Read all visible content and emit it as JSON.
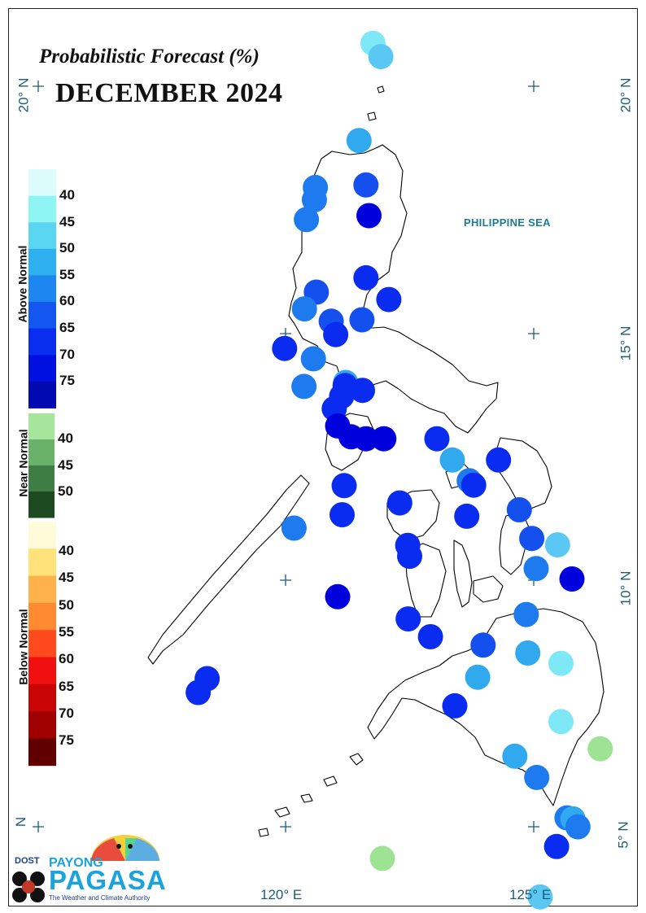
{
  "title": "Probabilistic Forecast (%)",
  "month": "DECEMBER 2024",
  "sea_label": "PHILIPPINE SEA",
  "lat_labels": {
    "top_left": "20° N",
    "top_right": "20° N",
    "mid_right": "15° N",
    "low_right": "10° N",
    "bottom_left": "N",
    "bottom_right": "5° N"
  },
  "lon_labels": {
    "west": "120° E",
    "east": "125° E"
  },
  "legend": {
    "above": {
      "title": "Above Normal",
      "labels": [
        "40",
        "45",
        "50",
        "55",
        "60",
        "65",
        "70",
        "75"
      ],
      "colors": [
        "#dcfcfc",
        "#8ef4f4",
        "#5ad6f0",
        "#2eb0f0",
        "#1e86f0",
        "#1456f0",
        "#0a2ef0",
        "#0010e0",
        "#000ab0"
      ]
    },
    "near": {
      "title": "Near Normal",
      "labels": [
        "40",
        "45",
        "50"
      ],
      "colors": [
        "#a6e69c",
        "#6ab26a",
        "#3e7e44",
        "#1e4a22"
      ]
    },
    "below": {
      "title": "Below Normal",
      "labels": [
        "40",
        "45",
        "50",
        "55",
        "60",
        "65",
        "70",
        "75"
      ],
      "colors": [
        "#fffbd8",
        "#ffe27a",
        "#ffb24a",
        "#ff8a32",
        "#ff4a1e",
        "#f01010",
        "#c80404",
        "#a00000",
        "#600000"
      ]
    }
  },
  "logo": {
    "dost": "DOST",
    "payong": "PAYONG",
    "pagasa": "PAGASA",
    "tagline": "The Weather and Climate Authority"
  },
  "colors": {
    "an40": "#a8f6f6",
    "an45": "#7ee8f7",
    "an50": "#5ac8f2",
    "an55": "#31a9ef",
    "an60": "#1e7aef",
    "an65": "#1450ee",
    "an70": "#0a2cf0",
    "an75": "#0000dc",
    "nn40": "#9ee394",
    "label_blue": "#1c5a7a"
  },
  "stations": [
    {
      "lon": 121.76,
      "lat": 20.87,
      "cat": "an45"
    },
    {
      "lon": 121.92,
      "lat": 20.6,
      "cat": "an50"
    },
    {
      "lon": 121.48,
      "lat": 18.9,
      "cat": "an55"
    },
    {
      "lon": 121.62,
      "lat": 18.0,
      "cat": "an65"
    },
    {
      "lon": 120.6,
      "lat": 17.95,
      "cat": "an60"
    },
    {
      "lon": 120.58,
      "lat": 17.7,
      "cat": "an60"
    },
    {
      "lon": 121.68,
      "lat": 17.38,
      "cat": "an75"
    },
    {
      "lon": 120.42,
      "lat": 17.3,
      "cat": "an60"
    },
    {
      "lon": 121.62,
      "lat": 16.12,
      "cat": "an70"
    },
    {
      "lon": 122.08,
      "lat": 15.68,
      "cat": "an70"
    },
    {
      "lon": 120.62,
      "lat": 15.83,
      "cat": "an65"
    },
    {
      "lon": 120.38,
      "lat": 15.49,
      "cat": "an60"
    },
    {
      "lon": 121.54,
      "lat": 15.27,
      "cat": "an65"
    },
    {
      "lon": 120.92,
      "lat": 15.24,
      "cat": "an65"
    },
    {
      "lon": 121.01,
      "lat": 14.97,
      "cat": "an70"
    },
    {
      "lon": 119.98,
      "lat": 14.69,
      "cat": "an70"
    },
    {
      "lon": 120.56,
      "lat": 14.48,
      "cat": "an60"
    },
    {
      "lon": 121.21,
      "lat": 14.0,
      "cat": "an55"
    },
    {
      "lon": 120.37,
      "lat": 13.92,
      "cat": "an60"
    },
    {
      "lon": 121.2,
      "lat": 13.94,
      "cat": "an70"
    },
    {
      "lon": 121.55,
      "lat": 13.84,
      "cat": "an70"
    },
    {
      "lon": 121.13,
      "lat": 13.72,
      "cat": "an70"
    },
    {
      "lon": 120.98,
      "lat": 13.47,
      "cat": "an70"
    },
    {
      "lon": 121.05,
      "lat": 13.12,
      "cat": "an75"
    },
    {
      "lon": 121.32,
      "lat": 12.9,
      "cat": "an75"
    },
    {
      "lon": 121.62,
      "lat": 12.86,
      "cat": "an75"
    },
    {
      "lon": 121.98,
      "lat": 12.86,
      "cat": "an75"
    },
    {
      "lon": 123.05,
      "lat": 12.86,
      "cat": "an70"
    },
    {
      "lon": 123.36,
      "lat": 12.43,
      "cat": "an55"
    },
    {
      "lon": 124.29,
      "lat": 12.43,
      "cat": "an70"
    },
    {
      "lon": 123.7,
      "lat": 12.01,
      "cat": "an60"
    },
    {
      "lon": 123.79,
      "lat": 11.92,
      "cat": "an70"
    },
    {
      "lon": 121.18,
      "lat": 11.91,
      "cat": "an70"
    },
    {
      "lon": 122.3,
      "lat": 11.56,
      "cat": "an70"
    },
    {
      "lon": 121.14,
      "lat": 11.32,
      "cat": "an70"
    },
    {
      "lon": 123.65,
      "lat": 11.29,
      "cat": "an70"
    },
    {
      "lon": 124.71,
      "lat": 11.42,
      "cat": "an65"
    },
    {
      "lon": 120.17,
      "lat": 11.05,
      "cat": "an60"
    },
    {
      "lon": 124.96,
      "lat": 10.84,
      "cat": "an65"
    },
    {
      "lon": 125.48,
      "lat": 10.71,
      "cat": "an50"
    },
    {
      "lon": 122.46,
      "lat": 10.7,
      "cat": "an70"
    },
    {
      "lon": 122.5,
      "lat": 10.48,
      "cat": "an70"
    },
    {
      "lon": 125.05,
      "lat": 10.23,
      "cat": "an60"
    },
    {
      "lon": 125.77,
      "lat": 10.02,
      "cat": "an75"
    },
    {
      "lon": 121.05,
      "lat": 9.66,
      "cat": "an75"
    },
    {
      "lon": 124.85,
      "lat": 9.3,
      "cat": "an60"
    },
    {
      "lon": 122.47,
      "lat": 9.21,
      "cat": "an70"
    },
    {
      "lon": 122.92,
      "lat": 8.85,
      "cat": "an70"
    },
    {
      "lon": 123.98,
      "lat": 8.68,
      "cat": "an65"
    },
    {
      "lon": 124.88,
      "lat": 8.52,
      "cat": "an55"
    },
    {
      "lon": 125.55,
      "lat": 8.31,
      "cat": "an45"
    },
    {
      "lon": 118.42,
      "lat": 8.0,
      "cat": "an70"
    },
    {
      "lon": 118.24,
      "lat": 7.72,
      "cat": "an70"
    },
    {
      "lon": 123.87,
      "lat": 8.03,
      "cat": "an55"
    },
    {
      "lon": 123.41,
      "lat": 7.45,
      "cat": "an70"
    },
    {
      "lon": 125.55,
      "lat": 7.13,
      "cat": "an45"
    },
    {
      "lon": 126.34,
      "lat": 6.58,
      "cat": "nn40"
    },
    {
      "lon": 124.62,
      "lat": 6.43,
      "cat": "an55"
    },
    {
      "lon": 125.06,
      "lat": 6.0,
      "cat": "an60"
    },
    {
      "lon": 125.67,
      "lat": 5.18,
      "cat": "an60"
    },
    {
      "lon": 125.79,
      "lat": 5.16,
      "cat": "an55"
    },
    {
      "lon": 125.89,
      "lat": 5.0,
      "cat": "an60"
    },
    {
      "lon": 125.46,
      "lat": 4.6,
      "cat": "an70"
    },
    {
      "lon": 121.95,
      "lat": 4.36,
      "cat": "nn40"
    },
    {
      "lon": 125.13,
      "lat": 3.58,
      "cat": "an50"
    }
  ]
}
